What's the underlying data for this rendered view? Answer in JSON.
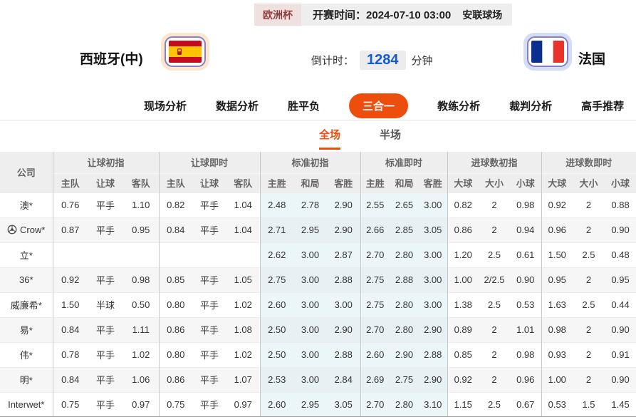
{
  "colors": {
    "accent": "#ee4e0d",
    "live_odds_text": "#1b5fd9",
    "league_badge_text": "#8f3f3f",
    "standard_col_bg": "#eaf6f8"
  },
  "info_bar": {
    "league": "欧洲杯",
    "kickoff_label": "开赛时间：",
    "kickoff_time": "2024-07-10 03:00",
    "venue": "安联球场"
  },
  "teams": {
    "home": {
      "name": "西班牙(中)",
      "flag": "spain-flag-icon"
    },
    "away": {
      "name": "法国",
      "flag": "france-flag-icon"
    }
  },
  "countdown": {
    "label": "倒计时：",
    "value": "1284",
    "unit": "分钟"
  },
  "nav": {
    "items": [
      {
        "label": "现场分析",
        "active": false
      },
      {
        "label": "数据分析",
        "active": false
      },
      {
        "label": "胜平负",
        "active": false
      },
      {
        "label": "三合一",
        "active": true
      },
      {
        "label": "教练分析",
        "active": false
      },
      {
        "label": "裁判分析",
        "active": false
      },
      {
        "label": "高手推荐",
        "active": false
      }
    ]
  },
  "subtabs": [
    {
      "label": "全场",
      "active": true
    },
    {
      "label": "半场",
      "active": false
    }
  ],
  "table": {
    "company_header": "公司",
    "groups": [
      {
        "label": "让球初指",
        "cols": [
          "主队",
          "让球",
          "客队"
        ]
      },
      {
        "label": "让球即时",
        "cols": [
          "主队",
          "让球",
          "客队"
        ]
      },
      {
        "label": "标准初指",
        "cols": [
          "主胜",
          "和局",
          "客胜"
        ]
      },
      {
        "label": "标准即时",
        "cols": [
          "主胜",
          "和局",
          "客胜"
        ]
      },
      {
        "label": "进球数初指",
        "cols": [
          "大球",
          "大小",
          "小球"
        ]
      },
      {
        "label": "进球数即时",
        "cols": [
          "大球",
          "大小",
          "小球"
        ]
      }
    ],
    "rows": [
      {
        "company": "澳*",
        "icon": null,
        "cells": [
          "0.76",
          "平手",
          "1.10",
          "0.82",
          "平手",
          "1.04",
          "2.48",
          "2.78",
          "2.90",
          "2.55",
          "2.65",
          "3.00",
          "0.82",
          "2",
          "0.98",
          "0.92",
          "2",
          "0.88"
        ]
      },
      {
        "company": "Crow*",
        "icon": "soccer-ball-icon",
        "cells": [
          "0.87",
          "平手",
          "0.95",
          "0.84",
          "平手",
          "1.04",
          "2.71",
          "2.95",
          "2.90",
          "2.66",
          "2.85",
          "3.05",
          "0.86",
          "2",
          "0.94",
          "0.96",
          "2",
          "0.90"
        ]
      },
      {
        "company": "立*",
        "icon": null,
        "cells": [
          "",
          "",
          "",
          "",
          "",
          "",
          "2.62",
          "3.00",
          "2.87",
          "2.70",
          "2.80",
          "3.00",
          "1.20",
          "2.5",
          "0.61",
          "1.50",
          "2.5",
          "0.48"
        ]
      },
      {
        "company": "36*",
        "icon": null,
        "cells": [
          "0.92",
          "平手",
          "0.98",
          "0.85",
          "平手",
          "1.05",
          "2.75",
          "3.00",
          "2.88",
          "2.75",
          "2.88",
          "3.00",
          "1.00",
          "2/2.5",
          "0.90",
          "0.95",
          "2",
          "0.95"
        ]
      },
      {
        "company": "威廉希*",
        "icon": null,
        "cells": [
          "1.50",
          "半球",
          "0.50",
          "0.80",
          "平手",
          "1.02",
          "2.60",
          "3.00",
          "3.00",
          "2.75",
          "2.80",
          "3.00",
          "1.38",
          "2.5",
          "0.53",
          "1.63",
          "2.5",
          "0.44"
        ]
      },
      {
        "company": "易*",
        "icon": null,
        "cells": [
          "0.84",
          "平手",
          "1.11",
          "0.86",
          "平手",
          "1.08",
          "2.50",
          "3.00",
          "2.90",
          "2.70",
          "2.80",
          "2.90",
          "0.89",
          "2",
          "1.01",
          "0.98",
          "2",
          "0.90"
        ]
      },
      {
        "company": "伟*",
        "icon": null,
        "cells": [
          "0.78",
          "平手",
          "1.02",
          "0.80",
          "平手",
          "1.02",
          "2.50",
          "3.00",
          "2.88",
          "2.60",
          "2.90",
          "2.88",
          "0.85",
          "2",
          "0.98",
          "0.93",
          "2",
          "0.91"
        ]
      },
      {
        "company": "明*",
        "icon": null,
        "cells": [
          "0.84",
          "平手",
          "1.06",
          "0.86",
          "平手",
          "1.07",
          "2.53",
          "3.00",
          "2.84",
          "2.69",
          "2.75",
          "2.90",
          "0.92",
          "2",
          "0.96",
          "1.00",
          "2",
          "0.90"
        ]
      },
      {
        "company": "Interwet*",
        "icon": null,
        "cells": [
          "0.75",
          "平手",
          "0.97",
          "0.75",
          "平手",
          "0.97",
          "2.60",
          "2.95",
          "3.05",
          "2.70",
          "2.80",
          "3.10",
          "1.15",
          "2.5",
          "0.67",
          "0.53",
          "1.5",
          "1.45"
        ]
      }
    ]
  }
}
